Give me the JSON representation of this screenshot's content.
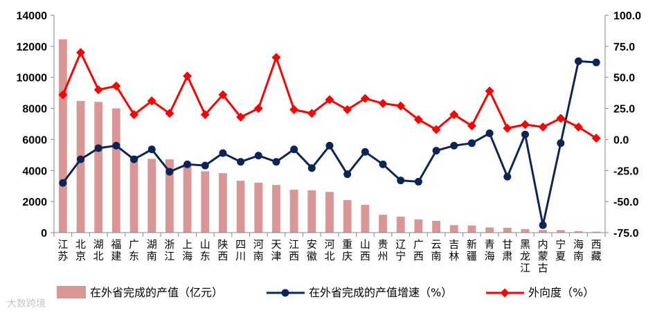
{
  "chart_data": {
    "type": "bar",
    "categories": [
      "江苏",
      "北京",
      "湖北",
      "福建",
      "广东",
      "湖南",
      "浙江",
      "上海",
      "山东",
      "陕西",
      "四川",
      "河南",
      "天津",
      "江西",
      "安徽",
      "河北",
      "重庆",
      "山西",
      "贵州",
      "辽宁",
      "广西",
      "云南",
      "吉林",
      "新疆",
      "青海",
      "甘肃",
      "黑龙江",
      "内蒙古",
      "宁夏",
      "海南",
      "西藏"
    ],
    "series": [
      {
        "name": "在外省完成的产值（亿元）",
        "type": "bar",
        "axis": "left",
        "values": [
          12450,
          8480,
          8420,
          8000,
          4950,
          4750,
          4720,
          4400,
          3950,
          3830,
          3340,
          3220,
          3070,
          2760,
          2720,
          2620,
          2100,
          1790,
          1150,
          1030,
          850,
          760,
          480,
          460,
          330,
          310,
          230,
          170,
          160,
          90,
          60
        ]
      },
      {
        "name": "在外省完成的产值增速（%）",
        "type": "line",
        "axis": "right",
        "values": [
          -35,
          -16,
          -7,
          -5,
          -16,
          -8,
          -26,
          -20,
          -21,
          -11,
          -18,
          -13,
          -18,
          -8,
          -23,
          -5,
          -28,
          -10,
          -20,
          -33,
          -34,
          -9,
          -5,
          -3,
          5,
          -30,
          4,
          -69,
          -3,
          63,
          62
        ]
      },
      {
        "name": "外向度（%）",
        "type": "line",
        "axis": "right",
        "values": [
          36,
          70,
          40,
          43,
          20,
          31,
          21,
          51,
          20,
          36,
          18,
          25,
          66,
          24,
          21,
          32,
          24,
          33,
          29,
          27,
          16,
          8,
          20,
          11,
          39,
          9,
          12,
          10,
          17,
          10,
          1
        ]
      }
    ],
    "ylim_left": [
      0,
      14000
    ],
    "yticks_left": [
      "0",
      "2000",
      "4000",
      "6000",
      "8000",
      "10000",
      "12000",
      "14000"
    ],
    "ylim_right": [
      -75,
      100
    ],
    "yticks_right": [
      "-75.0",
      "-50.0",
      "-25.0",
      "0.0",
      "25.0",
      "50.0",
      "75.0",
      "100.0"
    ],
    "colors": {
      "bar": "#d99694",
      "growth": "#0d2457",
      "outward": "#ff0000"
    },
    "legend_position": "bottom",
    "grid": false
  },
  "watermark": "大数跨境"
}
